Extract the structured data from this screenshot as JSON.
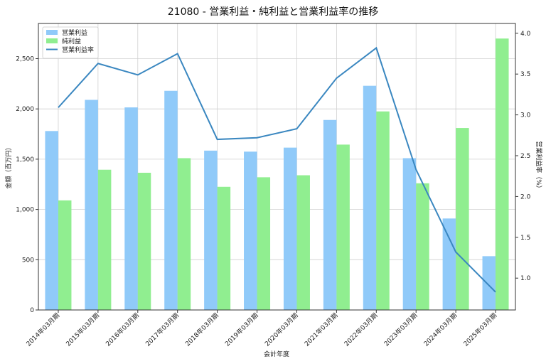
{
  "chart_data": {
    "type": "bar",
    "title": "21080 - 営業利益・純利益と営業利益率の推移",
    "xlabel": "会計年度",
    "ylabel": "金額（百万円）",
    "y2label": "営業利益率（%）",
    "categories": [
      "2014年03月期",
      "2015年03月期",
      "2016年03月期",
      "2017年03月期",
      "2018年03月期",
      "2019年03月期",
      "2020年03月期",
      "2021年03月期",
      "2022年03月期",
      "2023年03月期",
      "2024年03月期",
      "2025年03月期"
    ],
    "ylim": [
      0,
      2850
    ],
    "y2lim": [
      0.61,
      4.12
    ],
    "yticks": [
      0,
      500,
      1000,
      1500,
      2000,
      2500
    ],
    "ytick_labels": [
      "0",
      "500",
      "1,000",
      "1,500",
      "2,000",
      "2,500"
    ],
    "y2ticks": [
      1.0,
      1.5,
      2.0,
      2.5,
      3.0,
      3.5,
      4.0
    ],
    "y2tick_labels": [
      "1.0",
      "1.5",
      "2.0",
      "2.5",
      "3.0",
      "3.5",
      "4.0"
    ],
    "grid": true,
    "legend_position": "top-left",
    "series": [
      {
        "name": "営業利益",
        "kind": "bar",
        "color": "#90caf9",
        "values": [
          1780,
          2090,
          2015,
          2180,
          1585,
          1575,
          1615,
          1890,
          2230,
          1510,
          910,
          535
        ]
      },
      {
        "name": "純利益",
        "kind": "bar",
        "color": "#90ee90",
        "values": [
          1090,
          1395,
          1365,
          1510,
          1225,
          1320,
          1340,
          1645,
          1975,
          1260,
          1810,
          2700
        ]
      },
      {
        "name": "営業利益率",
        "kind": "line",
        "axis": "right",
        "color": "#3a87c0",
        "values": [
          3.09,
          3.63,
          3.49,
          3.75,
          2.7,
          2.72,
          2.83,
          3.45,
          3.82,
          2.33,
          1.32,
          0.83
        ]
      }
    ]
  }
}
